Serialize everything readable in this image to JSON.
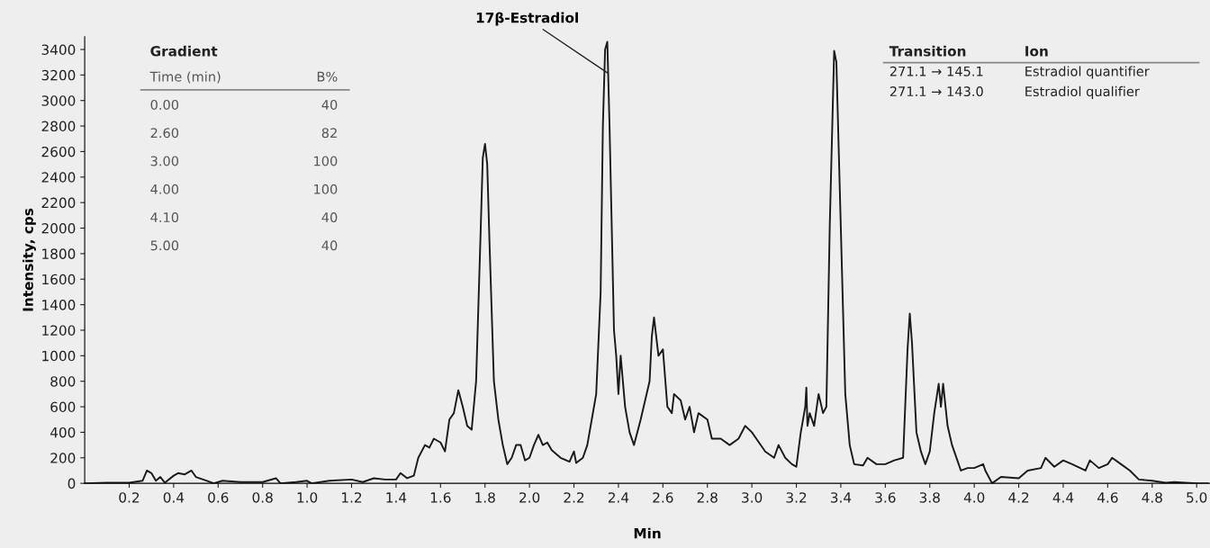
{
  "chart_data": {
    "type": "line",
    "xlabel": "Min",
    "ylabel": "Intensity, cps",
    "xlim": [
      0,
      5.06
    ],
    "ylim": [
      0,
      3500
    ],
    "xticks": [
      0.2,
      0.4,
      0.6,
      0.8,
      {
        "value": 1,
        "label": "1.0"
      },
      1.2,
      1.4,
      1.6,
      1.8,
      {
        "value": 2,
        "label": "2.0"
      },
      2.2,
      2.4,
      2.6,
      2.8,
      {
        "value": 3,
        "label": "3.0"
      },
      3.2,
      3.4,
      3.6,
      3.8,
      {
        "value": 4,
        "label": "4.0"
      },
      4.2,
      4.4,
      4.6,
      4.8,
      {
        "value": 5,
        "label": "5.0"
      }
    ],
    "yticks": [
      0,
      200,
      400,
      600,
      800,
      1000,
      1200,
      1400,
      1600,
      1800,
      2000,
      2200,
      2400,
      2600,
      2800,
      3000,
      3200,
      3400
    ],
    "grid": false,
    "legend": false,
    "marker": "none",
    "line_style": "solid",
    "annotations": [
      "Gradient",
      "Time (min)",
      "B%",
      "0.00",
      "40",
      "2.60",
      "82",
      "3.00",
      "100",
      "4.00",
      "100",
      "4.10",
      "40",
      "5.00",
      "40",
      "Transition",
      "Ion",
      "271.1 → 145.1",
      "Estradiol quantifier",
      "271.1 → 143.0",
      "Estradiol qualifier",
      {
        "text": "17β-Estradiol",
        "x": 2.35,
        "y": 3460
      }
    ],
    "series": [
      {
        "color": "#1a1a1a",
        "x": [
          0,
          0.1,
          0.2,
          0.26,
          0.28,
          0.3,
          0.32,
          0.34,
          0.36,
          0.4,
          0.42,
          0.45,
          0.48,
          0.5,
          0.55,
          0.58,
          0.62,
          0.7,
          0.8,
          0.86,
          0.88,
          0.95,
          1.0,
          1.02,
          1.1,
          1.2,
          1.25,
          1.3,
          1.35,
          1.4,
          1.42,
          1.45,
          1.48,
          1.5,
          1.53,
          1.55,
          1.57,
          1.6,
          1.62,
          1.64,
          1.66,
          1.68,
          1.7,
          1.72,
          1.74,
          1.76,
          1.78,
          1.79,
          1.8,
          1.81,
          1.82,
          1.84,
          1.86,
          1.88,
          1.9,
          1.92,
          1.94,
          1.96,
          1.98,
          2.0,
          2.02,
          2.04,
          2.06,
          2.08,
          2.1,
          2.14,
          2.18,
          2.2,
          2.21,
          2.24,
          2.26,
          2.28,
          2.3,
          2.32,
          2.33,
          2.34,
          2.35,
          2.36,
          2.38,
          2.39,
          2.4,
          2.41,
          2.43,
          2.45,
          2.47,
          2.5,
          2.52,
          2.54,
          2.55,
          2.56,
          2.57,
          2.58,
          2.6,
          2.62,
          2.64,
          2.65,
          2.68,
          2.7,
          2.72,
          2.74,
          2.76,
          2.8,
          2.82,
          2.86,
          2.9,
          2.94,
          2.97,
          3.0,
          3.02,
          3.06,
          3.1,
          3.12,
          3.15,
          3.18,
          3.2,
          3.22,
          3.24,
          3.245,
          3.25,
          3.26,
          3.28,
          3.3,
          3.32,
          3.335,
          3.35,
          3.37,
          3.38,
          3.4,
          3.42,
          3.44,
          3.46,
          3.5,
          3.52,
          3.56,
          3.6,
          3.64,
          3.68,
          3.7,
          3.71,
          3.72,
          3.74,
          3.76,
          3.78,
          3.8,
          3.82,
          3.84,
          3.85,
          3.86,
          3.88,
          3.9,
          3.94,
          3.97,
          4.0,
          4.04,
          4.05,
          4.08,
          4.12,
          4.2,
          4.24,
          4.3,
          4.32,
          4.36,
          4.4,
          4.44,
          4.5,
          4.52,
          4.56,
          4.6,
          4.62,
          4.66,
          4.7,
          4.74,
          4.8,
          4.86,
          4.9,
          5.0,
          5.05
        ],
        "values": [
          0,
          5,
          5,
          20,
          100,
          80,
          20,
          50,
          5,
          60,
          80,
          70,
          100,
          50,
          20,
          0,
          20,
          10,
          10,
          40,
          0,
          10,
          20,
          0,
          20,
          30,
          10,
          40,
          30,
          30,
          80,
          40,
          60,
          200,
          300,
          280,
          350,
          320,
          250,
          500,
          550,
          730,
          600,
          450,
          420,
          800,
          1950,
          2550,
          2660,
          2500,
          1900,
          800,
          500,
          300,
          150,
          200,
          300,
          300,
          180,
          200,
          300,
          380,
          300,
          320,
          260,
          200,
          170,
          250,
          160,
          200,
          300,
          500,
          700,
          1500,
          2800,
          3400,
          3460,
          2800,
          1200,
          1000,
          700,
          1000,
          600,
          400,
          300,
          500,
          650,
          800,
          1150,
          1300,
          1150,
          1000,
          1050,
          600,
          550,
          700,
          650,
          500,
          600,
          400,
          550,
          500,
          350,
          350,
          300,
          350,
          450,
          400,
          350,
          250,
          200,
          300,
          200,
          150,
          130,
          400,
          600,
          750,
          450,
          550,
          450,
          700,
          550,
          600,
          2000,
          3390,
          3300,
          2000,
          700,
          300,
          150,
          140,
          200,
          150,
          150,
          180,
          200,
          1050,
          1330,
          1100,
          400,
          250,
          150,
          250,
          550,
          780,
          600,
          780,
          450,
          300,
          100,
          120,
          120,
          150,
          100,
          0,
          50,
          40,
          100,
          120,
          200,
          130,
          180,
          150,
          100,
          180,
          120,
          150,
          200,
          150,
          100,
          30,
          20,
          5,
          10,
          0,
          0
        ]
      }
    ]
  }
}
